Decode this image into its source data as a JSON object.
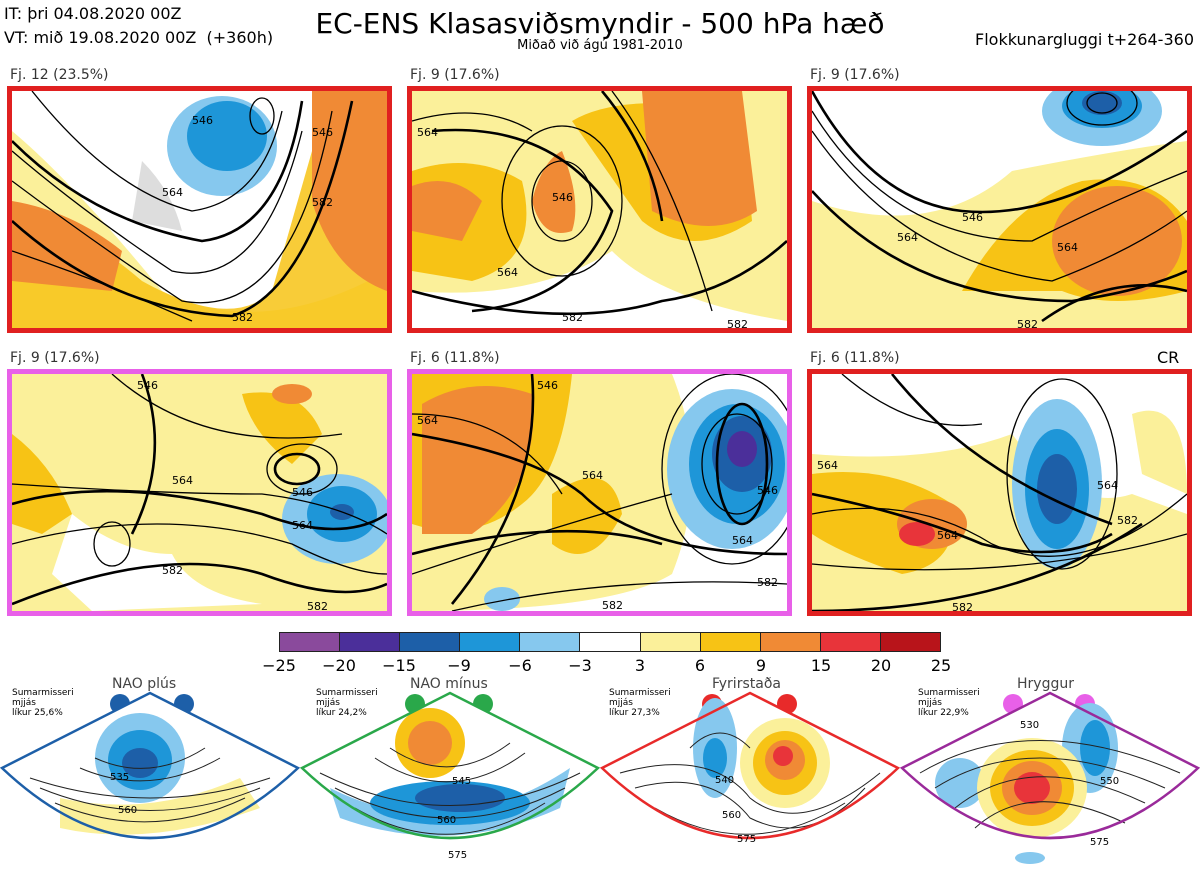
{
  "header": {
    "it_line": "IT: þri 04.08.2020 00Z",
    "vt_line": "VT: mið 19.08.2020 00Z  (+360h)",
    "title": "EC-ENS Klasasviðsmyndir - 500 hPa hæð",
    "subtitle": "Miðað við ágú 1981-2010",
    "window": "Flokkunargluggi t+264-360"
  },
  "panels": [
    {
      "label": "Fj. 12 (23.5%)",
      "border": "#e02020",
      "contours": [
        "546",
        "564",
        "582",
        "582",
        "546"
      ]
    },
    {
      "label": "Fj. 9 (17.6%)",
      "border": "#e02020",
      "contours": [
        "564",
        "546",
        "564",
        "582",
        "582"
      ]
    },
    {
      "label": "Fj. 9 (17.6%)",
      "border": "#e02020",
      "contours": [
        "546",
        "564",
        "564",
        "582"
      ]
    },
    {
      "label": "Fj. 9 (17.6%)",
      "border": "#e860e8",
      "contours": [
        "546",
        "564",
        "564",
        "546",
        "582",
        "582"
      ]
    },
    {
      "label": "Fj. 6 (11.8%)",
      "border": "#e860e8",
      "contours": [
        "564",
        "546",
        "564",
        "546",
        "564",
        "582",
        "582"
      ]
    },
    {
      "label": "Fj. 6 (11.8%)",
      "border": "#e02020",
      "contours": [
        "564",
        "564",
        "564",
        "582",
        "582"
      ]
    }
  ],
  "cr_label": "CR",
  "legend": {
    "colors": [
      "#8a4a9c",
      "#4b2f9a",
      "#1d5fa8",
      "#1e96d8",
      "#86c8ee",
      "#ffffff",
      "#fbf09a",
      "#f7c315",
      "#f08a35",
      "#e8343a",
      "#b8141a"
    ],
    "ticks": [
      "−25",
      "−20",
      "−15",
      "−9",
      "−6",
      "−3",
      "3",
      "6",
      "9",
      "15",
      "20",
      "25"
    ]
  },
  "regimes": [
    {
      "title": "NAO plús",
      "note": "Sumarmisseri\nmjjás\nlíkur 25,6%",
      "color": "#1d5fa8",
      "contours": [
        "535",
        "560"
      ]
    },
    {
      "title": "NAO mínus",
      "note": "Sumarmisseri\nmjjás\nlíkur 24,2%",
      "color": "#2aa84a",
      "contours": [
        "545",
        "560",
        "575"
      ]
    },
    {
      "title": "Fyrirstaða",
      "note": "Sumarmisseri\nmjjás\nlíkur 27,3%",
      "color": "#e82a2a",
      "contours": [
        "540",
        "560",
        "575"
      ]
    },
    {
      "title": "Hryggur",
      "note": "Sumarmisseri\nmjjás\nlíkur 22,9%",
      "color": "#9a2a9a",
      "contours": [
        "530",
        "550",
        "575"
      ]
    }
  ]
}
